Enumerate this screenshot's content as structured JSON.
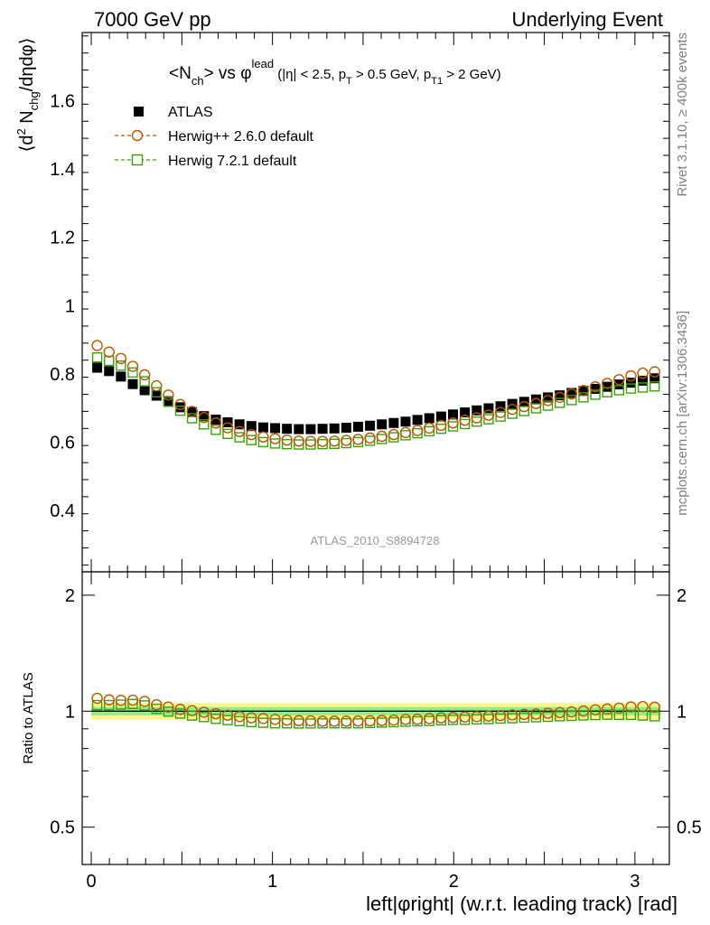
{
  "header": {
    "left": "7000 GeV pp",
    "right": "Underlying Event"
  },
  "side_labels": {
    "rivet": "Rivet 3.1.10, ≥ 400k events",
    "mcplots": "mcplots.cern.ch [arXiv:1306.3436]"
  },
  "chart_data": {
    "type": "scatter",
    "title": "<N_ch> vs φ^lead (|η| < 2.5, p_T > 0.5 GeV, p_T1 > 2 GeV)",
    "title_parts": {
      "t1": "<N",
      "t1_sub": "ch",
      "t2": "> vs φ",
      "t2_sup": "lead",
      "t3": " (|η| < 2.5, p",
      "t3_sub": "T",
      "t4": " > 0.5 GeV, p",
      "t4_sub": "T1",
      "t5": " > 2 GeV)"
    },
    "watermark": "ATLAS_2010_S8894728",
    "xlabel": "left|φright| (w.r.t. leading track) [rad]",
    "ylabel": "⟨d² N_chg/dηdφ⟩",
    "ylabel_parts": {
      "a": "⟨d",
      "a_sup": "2",
      "b": " N",
      "b_sub": "chg",
      "c": "/dηdφ⟩"
    },
    "ratio_ylabel": "Ratio to ATLAS",
    "xlim": [
      -0.05,
      3.19
    ],
    "ylim": [
      0.22,
      1.8
    ],
    "ratio_ylim": [
      0.4,
      2.3
    ],
    "ratio_log": true,
    "x_ticks": [
      "0",
      "1",
      "2",
      "3"
    ],
    "y_ticks": [
      "0.4",
      "0.6",
      "0.8",
      "1",
      "1.2",
      "1.4",
      "1.6"
    ],
    "ratio_ticks": [
      "0.5",
      "1",
      "2"
    ],
    "legend": [
      {
        "name": "ATLAS",
        "marker": "filled-square",
        "color": "#000000"
      },
      {
        "name": "Herwig++ 2.6.0 default",
        "marker": "open-circle",
        "color": "#b35900"
      },
      {
        "name": "Herwig 7.2.1 default",
        "marker": "open-square",
        "color": "#3f9f0f"
      }
    ],
    "x": [
      0.0327,
      0.0982,
      0.1636,
      0.2291,
      0.2945,
      0.36,
      0.4254,
      0.4909,
      0.5563,
      0.6218,
      0.6872,
      0.7527,
      0.8181,
      0.8836,
      0.949,
      1.0145,
      1.0799,
      1.1454,
      1.2108,
      1.2763,
      1.3417,
      1.4072,
      1.4726,
      1.5381,
      1.6035,
      1.669,
      1.7344,
      1.7999,
      1.8653,
      1.9308,
      1.9962,
      2.0617,
      2.1271,
      2.1926,
      2.258,
      2.3235,
      2.3889,
      2.4544,
      2.5198,
      2.5853,
      2.6507,
      2.7162,
      2.7816,
      2.8471,
      2.9125,
      2.978,
      3.0434,
      3.1089
    ],
    "series": [
      {
        "name": "ATLAS",
        "values": [
          0.818,
          0.808,
          0.792,
          0.77,
          0.752,
          0.736,
          0.72,
          0.702,
          0.688,
          0.676,
          0.666,
          0.658,
          0.652,
          0.647,
          0.643,
          0.641,
          0.639,
          0.638,
          0.638,
          0.639,
          0.64,
          0.642,
          0.645,
          0.648,
          0.652,
          0.656,
          0.66,
          0.665,
          0.67,
          0.675,
          0.681,
          0.687,
          0.693,
          0.699,
          0.705,
          0.712,
          0.718,
          0.725,
          0.731,
          0.737,
          0.744,
          0.75,
          0.756,
          0.762,
          0.769,
          0.774,
          0.78,
          0.787
        ]
      },
      {
        "name": "Herwig++ 2.6.0 default",
        "values": [
          0.883,
          0.864,
          0.845,
          0.822,
          0.797,
          0.765,
          0.738,
          0.71,
          0.69,
          0.672,
          0.656,
          0.642,
          0.631,
          0.622,
          0.615,
          0.61,
          0.606,
          0.603,
          0.602,
          0.602,
          0.603,
          0.605,
          0.608,
          0.612,
          0.617,
          0.622,
          0.628,
          0.634,
          0.641,
          0.649,
          0.656,
          0.664,
          0.671,
          0.679,
          0.687,
          0.696,
          0.704,
          0.713,
          0.722,
          0.731,
          0.741,
          0.751,
          0.762,
          0.772,
          0.783,
          0.794,
          0.802,
          0.806
        ]
      },
      {
        "name": "Herwig 7.2.1 default",
        "values": [
          0.848,
          0.838,
          0.824,
          0.804,
          0.778,
          0.746,
          0.718,
          0.692,
          0.67,
          0.652,
          0.636,
          0.624,
          0.614,
          0.606,
          0.6,
          0.596,
          0.594,
          0.593,
          0.593,
          0.594,
          0.595,
          0.597,
          0.6,
          0.604,
          0.609,
          0.614,
          0.62,
          0.626,
          0.632,
          0.639,
          0.646,
          0.653,
          0.66,
          0.667,
          0.675,
          0.683,
          0.691,
          0.699,
          0.707,
          0.715,
          0.723,
          0.731,
          0.739,
          0.746,
          0.752,
          0.757,
          0.76,
          0.763
        ]
      }
    ],
    "ratio_series": [
      {
        "name": "Herwig++ 2.6.0 default",
        "values": [
          1.08,
          1.07,
          1.067,
          1.068,
          1.06,
          1.039,
          1.025,
          1.011,
          1.003,
          0.994,
          0.985,
          0.976,
          0.968,
          0.961,
          0.957,
          0.952,
          0.948,
          0.945,
          0.944,
          0.942,
          0.942,
          0.942,
          0.943,
          0.944,
          0.946,
          0.948,
          0.952,
          0.953,
          0.957,
          0.961,
          0.963,
          0.966,
          0.968,
          0.971,
          0.974,
          0.978,
          0.981,
          0.983,
          0.988,
          0.992,
          0.996,
          1.001,
          1.008,
          1.013,
          1.018,
          1.026,
          1.028,
          1.024
        ]
      },
      {
        "name": "Herwig 7.2.1 default",
        "values": [
          1.037,
          1.037,
          1.04,
          1.044,
          1.035,
          1.014,
          0.997,
          0.986,
          0.974,
          0.965,
          0.955,
          0.948,
          0.942,
          0.937,
          0.933,
          0.93,
          0.93,
          0.929,
          0.929,
          0.93,
          0.93,
          0.93,
          0.93,
          0.932,
          0.934,
          0.936,
          0.939,
          0.941,
          0.943,
          0.947,
          0.949,
          0.95,
          0.952,
          0.954,
          0.957,
          0.959,
          0.962,
          0.964,
          0.967,
          0.97,
          0.972,
          0.975,
          0.977,
          0.979,
          0.978,
          0.978,
          0.974,
          0.97
        ]
      }
    ],
    "ratio_bands": {
      "inner": [
        0.975,
        1.025
      ],
      "outer": [
        0.95,
        1.05
      ]
    }
  }
}
